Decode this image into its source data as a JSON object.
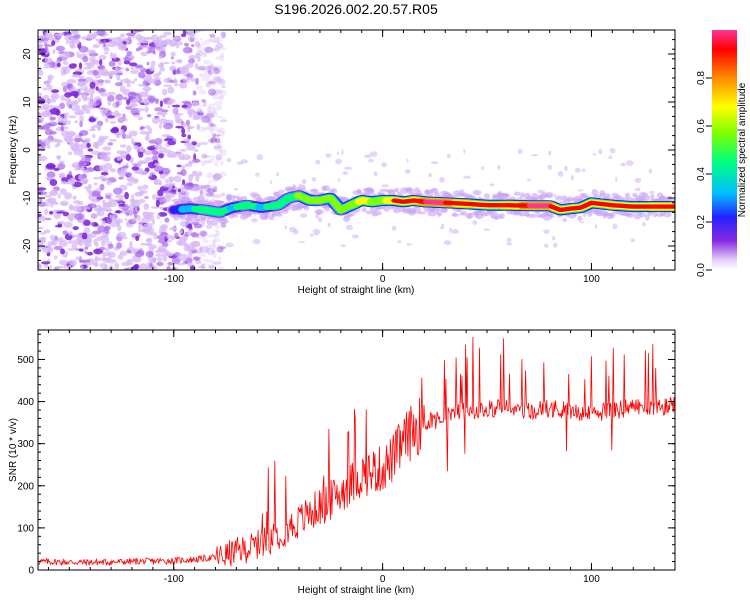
{
  "title": "S196.2026.002.20.57.R05",
  "chart_data": [
    {
      "type": "heatmap",
      "xlabel": "Height of straight line (km)",
      "ylabel": "Frequency (Hz)",
      "xlim": [
        -165,
        140
      ],
      "ylim": [
        -25,
        25
      ],
      "x_ticks": [
        -100,
        0,
        100
      ],
      "x_tick_labels": [
        "-100",
        "0",
        "100"
      ],
      "y_ticks": [
        20,
        10,
        0,
        -10,
        -20
      ],
      "y_tick_labels": [
        "20",
        "10",
        "0",
        "-10",
        "-20"
      ],
      "colorbar": {
        "label": "Normalized spectral amplitude",
        "range": [
          0,
          1
        ],
        "ticks": [
          0,
          0.2,
          0.4,
          0.6,
          0.8
        ],
        "tick_labels": [
          "0.0",
          "0.2",
          "0.4",
          "0.6",
          "0.8"
        ],
        "colors": [
          "#ffffff",
          "#c9a4f5",
          "#8a2be2",
          "#2222ff",
          "#00bfff",
          "#00ff7f",
          "#7fff00",
          "#ffff00",
          "#ff8c00",
          "#ff0000",
          "#ff3399"
        ]
      },
      "noise_region_x": [
        -165,
        -80
      ],
      "ridge": {
        "x": [
          -100,
          -92,
          -85,
          -78,
          -72,
          -65,
          -58,
          -50,
          -45,
          -40,
          -35,
          -30,
          -25,
          -20,
          -15,
          -10,
          -5,
          0,
          5,
          10,
          15,
          20,
          30,
          40,
          50,
          60,
          70,
          80,
          85,
          90,
          95,
          100,
          110,
          120,
          130,
          140
        ],
        "freq": [
          -12.5,
          -12.2,
          -12.5,
          -13,
          -12,
          -11.5,
          -12,
          -11.5,
          -10,
          -9.5,
          -10.5,
          -10.5,
          -10,
          -12.5,
          -11.5,
          -10.5,
          -10.8,
          -10.5,
          -10.5,
          -10.8,
          -10.5,
          -10.8,
          -11,
          -11.2,
          -11.5,
          -11.5,
          -11.6,
          -11.6,
          -12.5,
          -12.2,
          -12,
          -11,
          -11.5,
          -11.8,
          -11.8,
          -11.8
        ],
        "amplitude": [
          0.35,
          0.55,
          0.6,
          0.6,
          0.55,
          0.6,
          0.55,
          0.6,
          0.65,
          0.7,
          0.75,
          0.7,
          0.75,
          0.7,
          0.75,
          0.85,
          0.8,
          0.8,
          0.85,
          0.9,
          0.92,
          0.95,
          0.95,
          0.92,
          0.9,
          0.92,
          0.95,
          0.95,
          0.9,
          0.85,
          0.88,
          0.9,
          0.92,
          0.9,
          0.92,
          0.92
        ]
      }
    },
    {
      "type": "line",
      "xlabel": "Height of straight line (km)",
      "ylabel": "SNR (10 * v/v)",
      "xlim": [
        -165,
        140
      ],
      "ylim": [
        0,
        570
      ],
      "x_ticks": [
        -100,
        0,
        100
      ],
      "x_tick_labels": [
        "-100",
        "0",
        "100"
      ],
      "y_ticks": [
        0,
        100,
        200,
        300,
        400,
        500
      ],
      "y_tick_labels": [
        "0",
        "100",
        "200",
        "300",
        "400",
        "500"
      ],
      "color": "#ff0000",
      "series": [
        {
          "name": "SNR",
          "x": [
            -165,
            -140,
            -120,
            -100,
            -90,
            -80,
            -75,
            -70,
            -65,
            -60,
            -55,
            -50,
            -45,
            -40,
            -35,
            -30,
            -25,
            -20,
            -15,
            -10,
            -5,
            0,
            5,
            10,
            15,
            20,
            25,
            30,
            35,
            40,
            50,
            60,
            70,
            80,
            90,
            100,
            110,
            120,
            130,
            140
          ],
          "values": [
            20,
            18,
            20,
            22,
            25,
            30,
            35,
            45,
            50,
            60,
            70,
            85,
            100,
            115,
            135,
            150,
            165,
            185,
            205,
            225,
            235,
            240,
            265,
            305,
            335,
            350,
            355,
            365,
            375,
            380,
            380,
            385,
            378,
            385,
            380,
            372,
            380,
            385,
            385,
            390
          ]
        }
      ]
    }
  ]
}
